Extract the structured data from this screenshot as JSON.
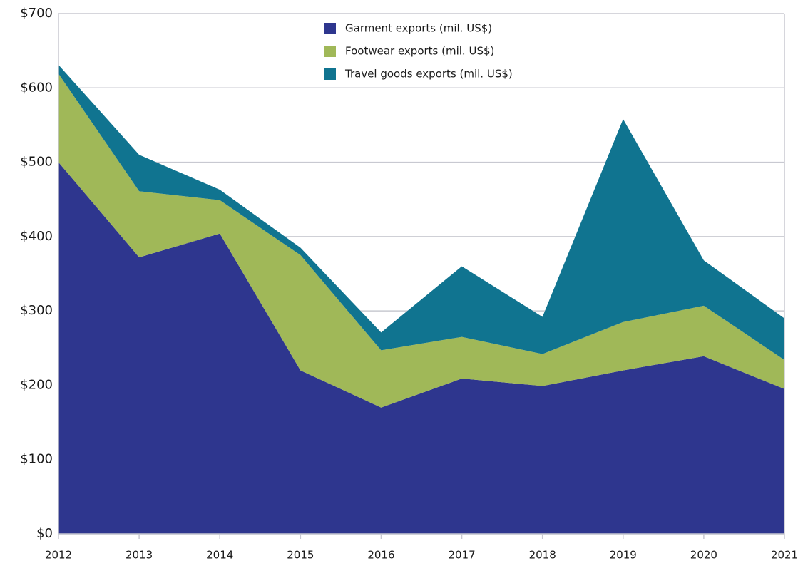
{
  "chart_data": {
    "type": "stacked-area",
    "categories": [
      "2012",
      "2013",
      "2014",
      "2015",
      "2016",
      "2017",
      "2018",
      "2019",
      "2020",
      "2021"
    ],
    "series": [
      {
        "name": "Garment exports (mil. US$)",
        "color": "#2e368e",
        "values": [
          500,
          372,
          404,
          220,
          170,
          209,
          199,
          220,
          239,
          195
        ]
      },
      {
        "name": "Footwear exports (mil. US$)",
        "color": "#a0b858",
        "values": [
          119,
          89,
          45,
          155,
          77,
          56,
          43,
          65,
          68,
          39
        ]
      },
      {
        "name": "Travel goods exports (mil. US$)",
        "color": "#107490",
        "values": [
          12,
          49,
          14,
          10,
          24,
          95,
          50,
          273,
          61,
          56
        ]
      }
    ],
    "ylim": [
      0,
      700
    ],
    "yticks": [
      {
        "value": 0,
        "label": "$0"
      },
      {
        "value": 100,
        "label": "$100"
      },
      {
        "value": 200,
        "label": "$200"
      },
      {
        "value": 300,
        "label": "$300"
      },
      {
        "value": 400,
        "label": "$400"
      },
      {
        "value": 500,
        "label": "$500"
      },
      {
        "value": 600,
        "label": "$600"
      },
      {
        "value": 700,
        "label": "$700"
      }
    ],
    "grid": true,
    "legend": "top"
  }
}
